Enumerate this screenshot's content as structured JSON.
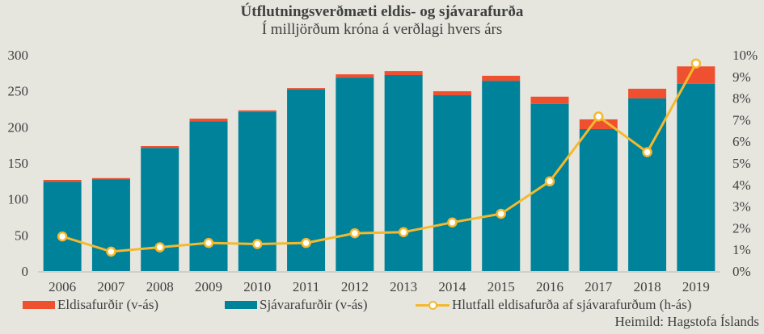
{
  "chart_data": {
    "type": "bar",
    "subtype": "stacked-bar-with-line-secondary-axis",
    "title": "Útflutningsverðmæti eldis- og sjávarafurða",
    "subtitle": "Í milljörðum króna á verðlagi hvers árs",
    "categories": [
      "2006",
      "2007",
      "2008",
      "2009",
      "2010",
      "2011",
      "2012",
      "2013",
      "2014",
      "2015",
      "2016",
      "2017",
      "2018",
      "2019"
    ],
    "series": [
      {
        "name": "Sjávarafurðir (v-ás)",
        "type": "bar",
        "axis": "left",
        "color": "#00829a",
        "values": [
          124,
          127.5,
          171,
          208,
          220.5,
          252,
          268.5,
          272,
          244,
          264,
          232,
          197,
          239.5,
          260
        ]
      },
      {
        "name": "Eldisafurðir (v-ás)",
        "type": "bar",
        "axis": "left",
        "color": "#ee5030",
        "values": [
          2.5,
          1.5,
          2.5,
          3.5,
          2.5,
          2,
          4.5,
          5.5,
          5.5,
          7,
          10,
          13.5,
          13.5,
          24
        ]
      },
      {
        "name": "Hlutfall eldisafurða af sjávarafurðum (h-ás)",
        "type": "line",
        "axis": "right",
        "color": "#f4b92e",
        "values": [
          1.6,
          0.9,
          1.1,
          1.3,
          1.25,
          1.3,
          1.75,
          1.8,
          2.25,
          2.65,
          4.15,
          7.15,
          5.5,
          9.6
        ]
      }
    ],
    "y_left": {
      "label": "",
      "range": [
        0,
        300
      ],
      "ticks": [
        0,
        50,
        100,
        150,
        200,
        250,
        300
      ]
    },
    "y_right": {
      "label": "",
      "range": [
        0,
        10
      ],
      "ticks": [
        "0%",
        "1%",
        "2%",
        "3%",
        "4%",
        "5%",
        "6%",
        "7%",
        "8%",
        "9%",
        "10%"
      ]
    },
    "xlabel": "",
    "grid": false,
    "legend_position": "bottom",
    "legend": [
      {
        "label": "Eldisafurðir (v-ás)",
        "kind": "bar",
        "color": "#ee5030"
      },
      {
        "label": "Sjávarafurðir (v-ás)",
        "kind": "bar",
        "color": "#00829a"
      },
      {
        "label": "Hlutfall eldisafurða af sjávarafurðum (h-ás)",
        "kind": "line-marker",
        "color": "#f4b92e"
      }
    ],
    "source": "Heimild:  Hagstofa Íslands"
  }
}
